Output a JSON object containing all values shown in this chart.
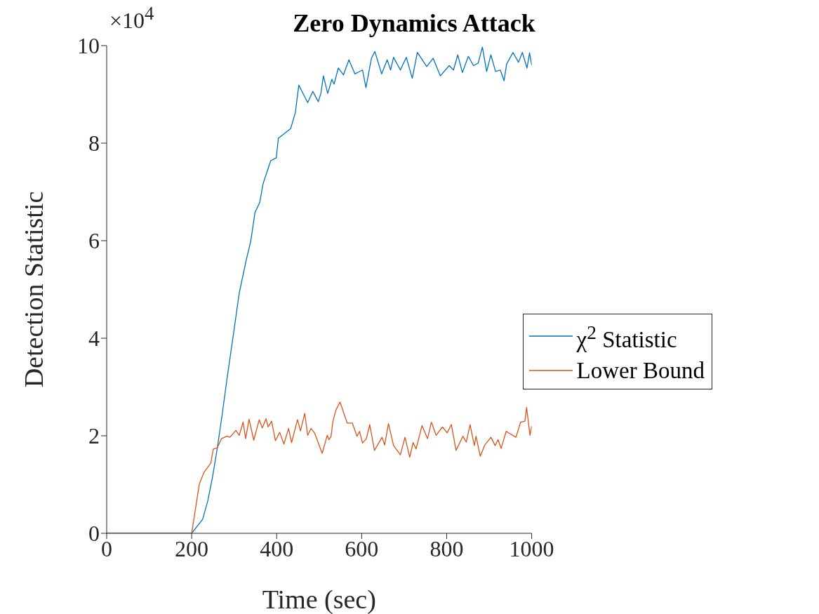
{
  "chart_data": {
    "type": "line",
    "title": "Zero Dynamics Attack",
    "xlabel": "Time (sec)",
    "ylabel": "Detection Statistic",
    "annotations": [
      "×10$^{4}$"
    ],
    "xlim": [
      0,
      1000
    ],
    "xticks": [
      0,
      200,
      400,
      600,
      800,
      1000
    ],
    "ylim": [
      0,
      10
    ],
    "yticks": [
      0,
      2,
      4,
      6,
      8,
      10
    ],
    "grid": false,
    "legend": "right",
    "marker": "none",
    "line_style": "solid",
    "series": [
      {
        "name": "χ$^{2}$ Statistic",
        "color": "#0072bd",
        "x": [
          0,
          200,
          226,
          238,
          249,
          260,
          272,
          283,
          299,
          312,
          328,
          339,
          349,
          360,
          368,
          386,
          399,
          404,
          433,
          444,
          452,
          473,
          485,
          498,
          504,
          510,
          520,
          530,
          535,
          545,
          557,
          570,
          584,
          602,
          610,
          623,
          631,
          647,
          660,
          668,
          675,
          691,
          705,
          719,
          731,
          753,
          768,
          785,
          806,
          816,
          826,
          837,
          851,
          863,
          874,
          884,
          894,
          904,
          915,
          926,
          935,
          941,
          956,
          969,
          978,
          989,
          995,
          1000
        ],
        "values": [
          0,
          0,
          0.29,
          0.67,
          1.15,
          1.73,
          2.45,
          3.16,
          4.13,
          4.93,
          5.59,
          5.99,
          6.58,
          6.78,
          7.17,
          7.64,
          7.7,
          8.1,
          8.3,
          8.63,
          9.19,
          8.83,
          9.06,
          8.85,
          9.02,
          9.38,
          9.02,
          9.31,
          9.21,
          9.54,
          9.4,
          9.71,
          9.42,
          9.5,
          9.14,
          9.74,
          9.88,
          9.42,
          9.71,
          9.5,
          9.76,
          9.5,
          9.76,
          9.33,
          9.86,
          9.57,
          9.74,
          9.38,
          9.59,
          9.5,
          9.81,
          9.45,
          9.78,
          9.59,
          9.64,
          9.97,
          9.47,
          9.81,
          9.47,
          9.5,
          9.28,
          9.62,
          9.86,
          9.66,
          9.86,
          9.54,
          9.85,
          9.6
        ]
      },
      {
        "name": "Lower Bound",
        "color": "#d95319",
        "x": [
          0,
          200,
          218,
          229,
          239,
          245,
          251,
          260,
          270,
          283,
          290,
          304,
          312,
          321,
          327,
          335,
          346,
          359,
          366,
          375,
          380,
          388,
          397,
          407,
          417,
          428,
          435,
          449,
          456,
          466,
          473,
          481,
          489,
          496,
          507,
          519,
          523,
          528,
          532,
          539,
          549,
          566,
          578,
          589,
          595,
          602,
          611,
          619,
          630,
          648,
          654,
          663,
          675,
          691,
          702,
          713,
          721,
          728,
          742,
          755,
          764,
          775,
          790,
          801,
          811,
          822,
          838,
          846,
          855,
          865,
          869,
          879,
          889,
          904,
          914,
          921,
          928,
          940,
          963,
          974,
          984,
          988,
          996,
          1000
        ],
        "values": [
          0,
          0,
          1.01,
          1.25,
          1.37,
          1.44,
          1.73,
          1.75,
          1.94,
          1.99,
          1.97,
          2.11,
          2.01,
          2.28,
          1.94,
          2.34,
          1.91,
          2.33,
          2.16,
          2.35,
          2.18,
          2.3,
          1.9,
          2.07,
          1.83,
          2.15,
          1.86,
          2.33,
          2.1,
          2.46,
          2.01,
          2.15,
          2.06,
          1.9,
          1.64,
          2.01,
          1.92,
          1.99,
          2.28,
          2.52,
          2.69,
          2.26,
          2.26,
          1.99,
          2.09,
          1.85,
          1.94,
          2.23,
          1.7,
          1.97,
          1.81,
          2.25,
          1.8,
          1.61,
          1.97,
          1.56,
          1.86,
          1.73,
          2.21,
          1.94,
          2.28,
          2.01,
          2.18,
          2.06,
          2.23,
          1.7,
          1.99,
          1.87,
          2.23,
          1.8,
          1.99,
          1.58,
          1.8,
          1.97,
          1.8,
          1.92,
          1.74,
          2.09,
          1.97,
          2.28,
          2.3,
          2.58,
          2.01,
          2.2
        ]
      }
    ]
  }
}
